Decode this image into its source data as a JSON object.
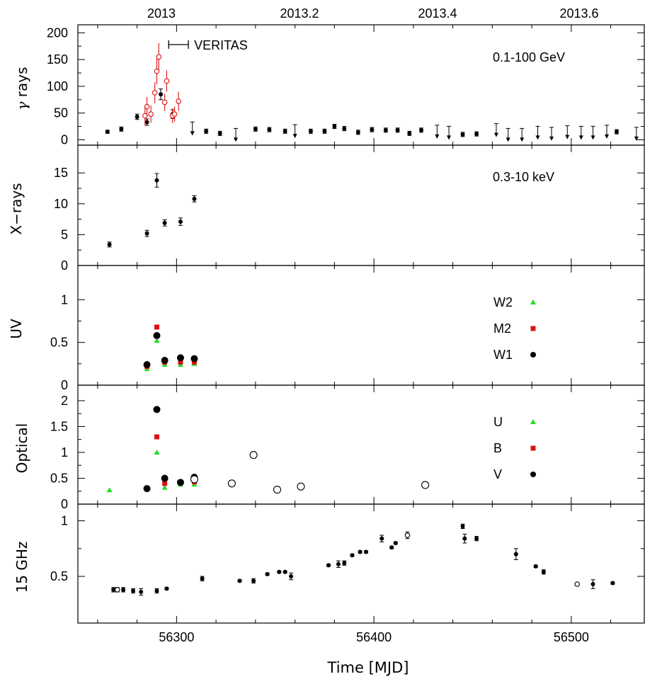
{
  "figure": {
    "x_axis_label": "Time [MJD]",
    "top_axis_labels": [
      "2013",
      "2013.2",
      "2013.4",
      "2013.6"
    ],
    "x_range": [
      56250,
      56537
    ],
    "x_ticks": [
      56300,
      56400,
      56500
    ]
  },
  "chart_data": [
    {
      "type": "scatter",
      "ylabel": "γ rays",
      "annotation": "0.1-100 GeV",
      "bar_label": "VERITAS",
      "bar_span": [
        56296,
        56306
      ],
      "ylim": [
        -10,
        215
      ],
      "yticks": [
        0,
        50,
        100,
        150,
        200
      ],
      "series": [
        {
          "name": "",
          "style": "filled-circle",
          "color": "#000000",
          "points": [
            [
              56265,
              15,
              3
            ],
            [
              56272,
              20,
              4
            ],
            [
              56280,
              43,
              5
            ],
            [
              56285,
              33,
              6
            ],
            [
              56292,
              85,
              10
            ],
            [
              56298,
              48,
              8
            ],
            [
              56315,
              16,
              4
            ],
            [
              56322,
              12,
              4
            ],
            [
              56340,
              20,
              4
            ],
            [
              56347,
              19,
              4
            ],
            [
              56355,
              16,
              4
            ],
            [
              56368,
              16,
              4
            ],
            [
              56375,
              16,
              4
            ],
            [
              56380,
              25,
              4
            ],
            [
              56385,
              21,
              4
            ],
            [
              56392,
              14,
              4
            ],
            [
              56399,
              19,
              4
            ],
            [
              56406,
              18,
              4
            ],
            [
              56412,
              18,
              4
            ],
            [
              56418,
              12,
              4
            ],
            [
              56424,
              18,
              4
            ],
            [
              56445,
              10,
              4
            ],
            [
              56452,
              11,
              4
            ],
            [
              56523,
              15,
              4
            ]
          ]
        },
        {
          "name": "",
          "style": "upper-limit",
          "color": "#000000",
          "points": [
            [
              56308,
              20
            ],
            [
              56330,
              8
            ],
            [
              56360,
              15
            ],
            [
              56432,
              14
            ],
            [
              56438,
              12
            ],
            [
              56462,
              17
            ],
            [
              56468,
              8
            ],
            [
              56475,
              8
            ],
            [
              56483,
              12
            ],
            [
              56490,
              10
            ],
            [
              56498,
              13
            ],
            [
              56505,
              12
            ],
            [
              56511,
              12
            ],
            [
              56518,
              14
            ],
            [
              56533,
              10
            ]
          ]
        },
        {
          "name": "",
          "style": "open-circle",
          "color": "#dd1111",
          "points": [
            [
              56284,
              45,
              18
            ],
            [
              56285,
              62,
              18
            ],
            [
              56287,
              48,
              16
            ],
            [
              56289,
              88,
              20
            ],
            [
              56290,
              128,
              24
            ],
            [
              56291,
              155,
              26
            ],
            [
              56294,
              70,
              16
            ],
            [
              56295,
              110,
              20
            ],
            [
              56298,
              45,
              14
            ],
            [
              56299,
              48,
              14
            ],
            [
              56301,
              72,
              18
            ]
          ]
        }
      ]
    },
    {
      "type": "scatter",
      "ylabel": "X−rays",
      "annotation": "0.3-10 keV",
      "ylim": [
        0,
        19.5
      ],
      "yticks": [
        0,
        5,
        10,
        15
      ],
      "series": [
        {
          "name": "",
          "style": "filled-circle",
          "color": "#000000",
          "points": [
            [
              56266,
              3.4,
              0.4
            ],
            [
              56285,
              5.2,
              0.5
            ],
            [
              56290,
              13.8,
              1.1
            ],
            [
              56294,
              6.9,
              0.5
            ],
            [
              56302,
              7.1,
              0.6
            ],
            [
              56309,
              10.8,
              0.5
            ]
          ]
        }
      ]
    },
    {
      "type": "scatter",
      "ylabel": "UV",
      "ylim": [
        0,
        1.4
      ],
      "yticks": [
        0,
        0.5,
        1
      ],
      "series": [
        {
          "name": "W2",
          "style": "triangle",
          "color": "#22dd22",
          "points": [
            [
              56285,
              0.19
            ],
            [
              56290,
              0.52
            ],
            [
              56294,
              0.24
            ],
            [
              56302,
              0.24
            ],
            [
              56309,
              0.25
            ]
          ]
        },
        {
          "name": "M2",
          "style": "square",
          "color": "#dd1111",
          "points": [
            [
              56285,
              0.22
            ],
            [
              56290,
              0.68
            ],
            [
              56294,
              0.27
            ],
            [
              56302,
              0.27
            ],
            [
              56309,
              0.27
            ]
          ]
        },
        {
          "name": "W1",
          "style": "filled-circle",
          "color": "#000000",
          "points": [
            [
              56285,
              0.24
            ],
            [
              56290,
              0.58
            ],
            [
              56294,
              0.29
            ],
            [
              56302,
              0.32
            ],
            [
              56309,
              0.31
            ]
          ]
        }
      ]
    },
    {
      "type": "scatter",
      "ylabel": "Optical",
      "ylim": [
        0,
        2.3
      ],
      "yticks": [
        0,
        0.5,
        1,
        1.5,
        2
      ],
      "series": [
        {
          "name": "U",
          "style": "triangle",
          "color": "#22dd22",
          "points": [
            [
              56266,
              0.27
            ],
            [
              56285,
              0.3
            ],
            [
              56290,
              1.0
            ],
            [
              56294,
              0.32
            ],
            [
              56302,
              0.38
            ],
            [
              56309,
              0.38
            ]
          ]
        },
        {
          "name": "B",
          "style": "square",
          "color": "#dd1111",
          "points": [
            [
              56285,
              0.3
            ],
            [
              56290,
              1.3
            ],
            [
              56294,
              0.4
            ],
            [
              56302,
              0.42
            ],
            [
              56309,
              0.43
            ]
          ]
        },
        {
          "name": "V",
          "style": "filled-circle",
          "color": "#000000",
          "points": [
            [
              56285,
              0.3
            ],
            [
              56290,
              1.83
            ],
            [
              56294,
              0.5
            ],
            [
              56302,
              0.42
            ],
            [
              56309,
              0.52
            ]
          ]
        },
        {
          "name": "",
          "style": "open-circle-large",
          "color": "#000000",
          "points": [
            [
              56309,
              0.48
            ],
            [
              56328,
              0.4
            ],
            [
              56339,
              0.95
            ],
            [
              56351,
              0.28
            ],
            [
              56363,
              0.34
            ],
            [
              56426,
              0.37
            ]
          ]
        }
      ]
    },
    {
      "type": "scatter",
      "ylabel": "15 GHz",
      "ylim": [
        0.08,
        1.15
      ],
      "yticks": [
        0.5,
        1
      ],
      "series": [
        {
          "name": "",
          "style": "filled-circle",
          "color": "#000000",
          "points": [
            [
              56268,
              0.38,
              0.02
            ],
            [
              56270,
              0.38,
              0.02
            ],
            [
              56273,
              0.38,
              0.02
            ],
            [
              56278,
              0.37,
              0.02
            ],
            [
              56282,
              0.36,
              0.03
            ],
            [
              56290,
              0.37,
              0.02
            ],
            [
              56295,
              0.39,
              0.01
            ],
            [
              56313,
              0.48,
              0.02
            ],
            [
              56332,
              0.46,
              0.01
            ],
            [
              56339,
              0.46,
              0.02
            ],
            [
              56346,
              0.52,
              0.01
            ],
            [
              56352,
              0.54,
              0.01
            ],
            [
              56355,
              0.54,
              0.01
            ],
            [
              56358,
              0.5,
              0.03
            ],
            [
              56377,
              0.6,
              0.01
            ],
            [
              56382,
              0.61,
              0.03
            ],
            [
              56385,
              0.62,
              0.02
            ],
            [
              56389,
              0.69,
              0.01
            ],
            [
              56393,
              0.72,
              0.01
            ],
            [
              56396,
              0.72,
              0.01
            ],
            [
              56404,
              0.84,
              0.03
            ],
            [
              56409,
              0.76,
              0.01
            ],
            [
              56411,
              0.8,
              0.01
            ],
            [
              56445,
              0.95,
              0.02
            ],
            [
              56446,
              0.84,
              0.04
            ],
            [
              56452,
              0.84,
              0.02
            ],
            [
              56472,
              0.7,
              0.05
            ],
            [
              56482,
              0.59,
              0.01
            ],
            [
              56486,
              0.54,
              0.02
            ],
            [
              56511,
              0.43,
              0.04
            ],
            [
              56521,
              0.44,
              0.01
            ]
          ]
        },
        {
          "name": "",
          "style": "open-circle",
          "color": "#000000",
          "points": [
            [
              56270,
              0.38,
              0.01
            ],
            [
              56417,
              0.87,
              0.03
            ],
            [
              56503,
              0.43,
              0.01
            ]
          ]
        }
      ]
    }
  ]
}
